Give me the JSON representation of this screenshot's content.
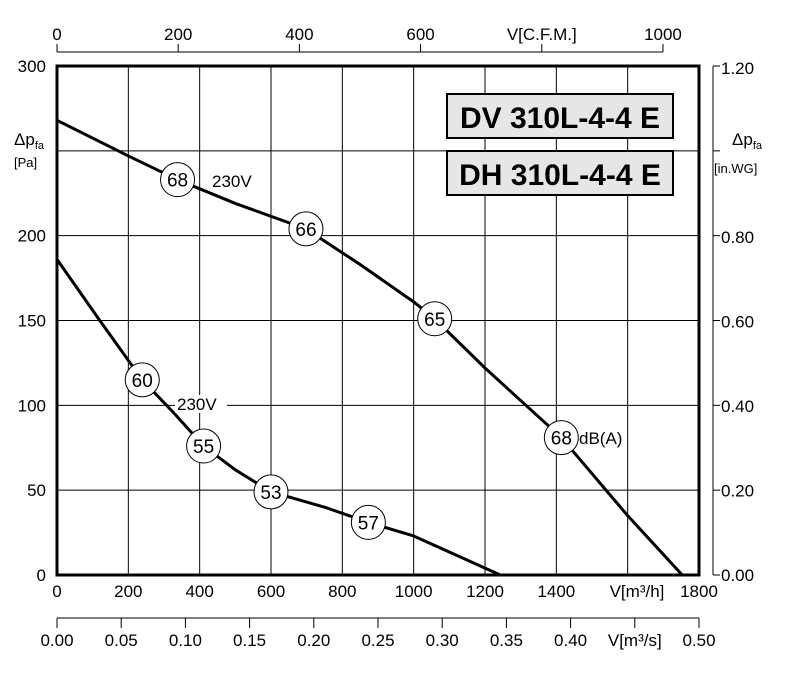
{
  "chart_data": {
    "type": "line",
    "title_boxes": [
      "DV 310L-4-4 E",
      "DH 310L-4-4 E"
    ],
    "x_axis_bottom": {
      "label": "V[m³/h]",
      "range": [
        0,
        1800
      ],
      "ticks": [
        "0",
        "200",
        "400",
        "600",
        "800",
        "1000",
        "1200",
        "1400",
        "1800"
      ]
    },
    "x_axis_secondary": {
      "label": "V[m³/s]",
      "range": [
        0,
        0.5
      ],
      "ticks": [
        "0.00",
        "0.05",
        "0.10",
        "0.15",
        "0.20",
        "0.25",
        "0.30",
        "0.35",
        "0.40",
        "0.50"
      ]
    },
    "x_axis_top": {
      "label": "V[C.F.M.]",
      "ticks": [
        "0",
        "200",
        "400",
        "600",
        "1000"
      ]
    },
    "y_axis_left": {
      "label_main": "Δp",
      "label_sub": "fa",
      "unit": "[Pa]",
      "range": [
        0,
        300
      ],
      "ticks": [
        "0",
        "50",
        "100",
        "150",
        "200",
        "300"
      ]
    },
    "y_axis_right": {
      "label_main": "Δp",
      "label_sub": "fa",
      "unit": "[in.WG]",
      "range": [
        0,
        1.2
      ],
      "ticks": [
        "0.00",
        "0.20",
        "0.40",
        "0.60",
        "0.80",
        "1.20"
      ]
    },
    "grid": true,
    "series": [
      {
        "voltage_label": "230V",
        "x": [
          0,
          200,
          338,
          500,
          698,
          850,
          1000,
          1059,
          1200,
          1414,
          1600,
          1753
        ],
        "y": [
          268,
          247,
          233,
          219,
          204,
          183,
          161,
          151,
          122,
          81,
          35,
          0
        ],
        "sound_markers": [
          {
            "x": 338,
            "y": 233,
            "dba": "68"
          },
          {
            "x": 698,
            "y": 204,
            "dba": "66"
          },
          {
            "x": 1059,
            "y": 151,
            "dba": "65"
          },
          {
            "x": 1414,
            "y": 81,
            "dba": "68"
          }
        ],
        "unit_label": "dB(A)"
      },
      {
        "voltage_label": "230V",
        "x": [
          0,
          120,
          239,
          330,
          411,
          500,
          600,
          750,
          873,
          1000,
          1243
        ],
        "y": [
          186,
          150,
          115,
          95,
          76,
          62,
          49,
          40,
          31,
          23,
          0
        ],
        "sound_markers": [
          {
            "x": 239,
            "y": 115,
            "dba": "60"
          },
          {
            "x": 411,
            "y": 76,
            "dba": "55"
          },
          {
            "x": 600,
            "y": 49,
            "dba": "53"
          },
          {
            "x": 873,
            "y": 31,
            "dba": "57"
          }
        ]
      }
    ]
  }
}
